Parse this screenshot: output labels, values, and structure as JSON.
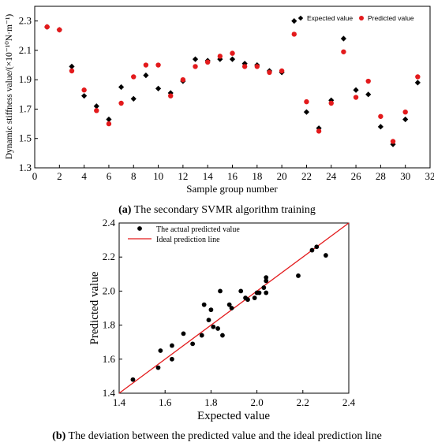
{
  "chart_data": [
    {
      "type": "scatter",
      "xlabel": "Sample group number",
      "ylabel": "Dynamic stiffness value/(×10⁻¹⁰N·m⁻¹)",
      "xlim": [
        0,
        32
      ],
      "ylim": [
        1.3,
        2.4
      ],
      "xticks": [
        "0",
        "2",
        "4",
        "6",
        "8",
        "10",
        "12",
        "14",
        "16",
        "18",
        "20",
        "22",
        "24",
        "26",
        "28",
        "30",
        "32"
      ],
      "yticks": [
        "1.3",
        "1.5",
        "1.7",
        "1.9",
        "2.1",
        "2.3"
      ],
      "legend_position": "top-right",
      "x": [
        1,
        2,
        3,
        4,
        5,
        6,
        7,
        8,
        9,
        10,
        11,
        12,
        13,
        14,
        15,
        16,
        17,
        18,
        19,
        20,
        21,
        22,
        23,
        24,
        25,
        26,
        27,
        28,
        29,
        30,
        31
      ],
      "series": [
        {
          "name": "Expected value",
          "marker": "diamond",
          "color": "#000000",
          "values": [
            2.26,
            2.24,
            1.99,
            1.79,
            1.72,
            1.63,
            1.85,
            1.77,
            1.93,
            1.84,
            1.81,
            1.89,
            2.04,
            2.03,
            2.04,
            2.04,
            2.01,
            2.0,
            1.96,
            1.95,
            2.3,
            1.68,
            1.57,
            1.76,
            2.18,
            1.83,
            1.8,
            1.58,
            1.46,
            1.63,
            1.88
          ]
        },
        {
          "name": "Predicted value",
          "marker": "circle",
          "color": "#e31a1c",
          "values": [
            2.26,
            2.24,
            1.96,
            1.83,
            1.69,
            1.6,
            1.74,
            1.92,
            2.0,
            2.0,
            1.79,
            1.9,
            1.99,
            2.02,
            2.06,
            2.08,
            1.99,
            1.99,
            1.95,
            1.96,
            2.21,
            1.75,
            1.55,
            1.74,
            2.09,
            1.78,
            1.89,
            1.65,
            1.48,
            1.68,
            1.92
          ]
        }
      ]
    },
    {
      "type": "scatter",
      "xlabel": "Expected value",
      "ylabel": "Predicted value",
      "xlim": [
        1.4,
        2.4
      ],
      "ylim": [
        1.4,
        2.4
      ],
      "xticks": [
        "1.4",
        "1.6",
        "1.8",
        "2.0",
        "2.2",
        "2.4"
      ],
      "yticks": [
        "1.4",
        "1.6",
        "1.8",
        "2.0",
        "2.2",
        "2.4"
      ],
      "legend_position": "top-left",
      "series": [
        {
          "name": "The actual predicted value",
          "marker": "circle",
          "color": "#000000",
          "x": [
            2.26,
            2.24,
            1.99,
            1.79,
            1.72,
            1.63,
            1.85,
            1.77,
            1.93,
            1.84,
            1.81,
            1.89,
            2.04,
            2.03,
            2.04,
            2.04,
            2.01,
            2.0,
            1.96,
            1.95,
            2.3,
            1.68,
            1.57,
            1.76,
            2.18,
            1.83,
            1.8,
            1.58,
            1.46,
            1.63,
            1.88
          ],
          "y": [
            2.26,
            2.24,
            1.96,
            1.83,
            1.69,
            1.6,
            1.74,
            1.92,
            2.0,
            2.0,
            1.79,
            1.9,
            1.99,
            2.02,
            2.06,
            2.08,
            1.99,
            1.99,
            1.95,
            1.96,
            2.21,
            1.75,
            1.55,
            1.74,
            2.09,
            1.78,
            1.89,
            1.65,
            1.48,
            1.68,
            1.92
          ]
        },
        {
          "name": "Ideal prediction line",
          "marker": "line",
          "color": "#e31a1c",
          "x": [
            1.4,
            2.4
          ],
          "y": [
            1.4,
            2.4
          ]
        }
      ]
    }
  ],
  "captions": {
    "a_bold": "(a)",
    "a_text": " The secondary SVMR algorithm training",
    "b_bold": "(b)",
    "b_text": " The deviation between the predicted value and the ideal prediction line"
  }
}
